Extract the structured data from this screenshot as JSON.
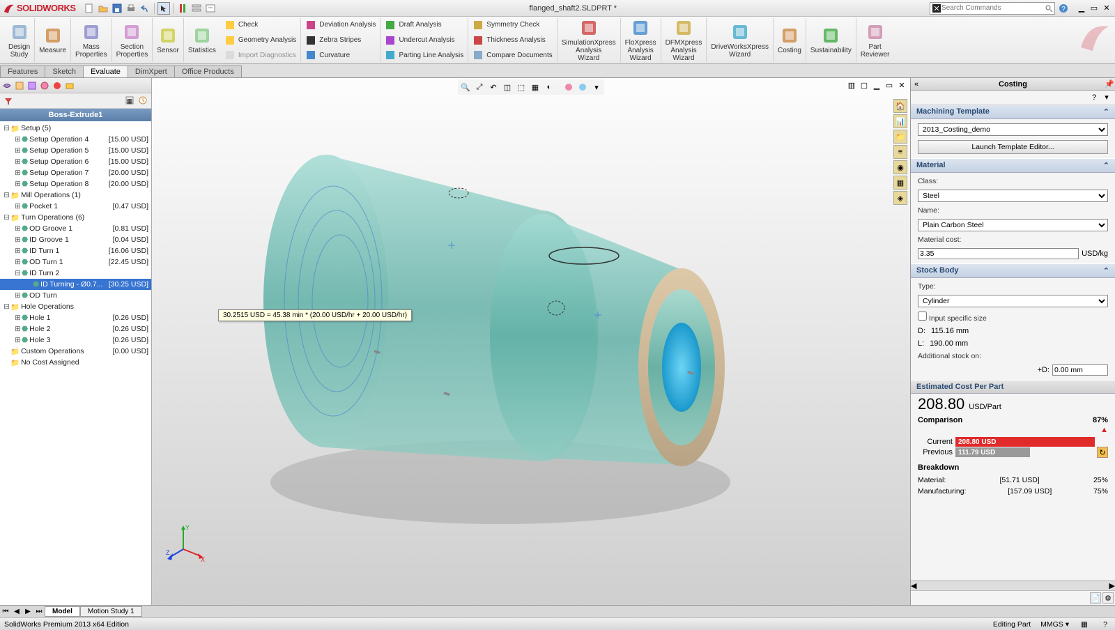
{
  "app_name": "SOLIDWORKS",
  "doc_title": "flanged_shaft2.SLDPRT *",
  "search_placeholder": "Search Commands",
  "ribbon": {
    "big": [
      {
        "label": "Design\nStudy",
        "icon": "design-study"
      },
      {
        "label": "Measure",
        "icon": "measure"
      },
      {
        "label": "Mass\nProperties",
        "icon": "mass"
      },
      {
        "label": "Section\nProperties",
        "icon": "section"
      },
      {
        "label": "Sensor",
        "icon": "sensor"
      },
      {
        "label": "Statistics",
        "icon": "stats"
      }
    ],
    "col1": [
      {
        "label": "Check",
        "icon": "check"
      },
      {
        "label": "Geometry Analysis",
        "icon": "geom"
      },
      {
        "label": "Import Diagnostics",
        "icon": "import",
        "disabled": true
      }
    ],
    "col2": [
      {
        "label": "Deviation Analysis",
        "icon": "dev"
      },
      {
        "label": "Zebra Stripes",
        "icon": "zebra"
      },
      {
        "label": "Curvature",
        "icon": "curv"
      }
    ],
    "col3": [
      {
        "label": "Draft Analysis",
        "icon": "draft"
      },
      {
        "label": "Undercut Analysis",
        "icon": "undercut"
      },
      {
        "label": "Parting Line Analysis",
        "icon": "parting"
      }
    ],
    "col4": [
      {
        "label": "Symmetry Check",
        "icon": "sym"
      },
      {
        "label": "Thickness Analysis",
        "icon": "thick"
      },
      {
        "label": "Compare Documents",
        "icon": "compare"
      }
    ],
    "big2": [
      {
        "label": "SimulationXpress\nAnalysis\nWizard",
        "icon": "simx"
      },
      {
        "label": "FloXpress\nAnalysis\nWizard",
        "icon": "flox"
      },
      {
        "label": "DFMXpress\nAnalysis\nWizard",
        "icon": "dfmx"
      },
      {
        "label": "DriveWorksXpress\nWizard",
        "icon": "dwx"
      },
      {
        "label": "Costing",
        "icon": "costing"
      },
      {
        "label": "Sustainability",
        "icon": "sustain"
      },
      {
        "label": "Part\nReviewer",
        "icon": "partrev"
      }
    ]
  },
  "tabs": [
    "Features",
    "Sketch",
    "Evaluate",
    "DimXpert",
    "Office Products"
  ],
  "active_tab": "Evaluate",
  "feature_header": "Boss-Extrude1",
  "tree": [
    {
      "lvl": 0,
      "exp": "-",
      "label": "Setup (5)",
      "folder": true
    },
    {
      "lvl": 1,
      "exp": "+",
      "label": "Setup Operation 4",
      "cost": "[15.00 USD]"
    },
    {
      "lvl": 1,
      "exp": "+",
      "label": "Setup Operation 5",
      "cost": "[15.00 USD]"
    },
    {
      "lvl": 1,
      "exp": "+",
      "label": "Setup Operation 6",
      "cost": "[15.00 USD]"
    },
    {
      "lvl": 1,
      "exp": "+",
      "label": "Setup Operation 7",
      "cost": "[20.00 USD]"
    },
    {
      "lvl": 1,
      "exp": "+",
      "label": "Setup Operation 8",
      "cost": "[20.00 USD]"
    },
    {
      "lvl": 0,
      "exp": "-",
      "label": "Mill Operations (1)",
      "folder": true
    },
    {
      "lvl": 1,
      "exp": "+",
      "label": "Pocket 1",
      "cost": "[0.47 USD]"
    },
    {
      "lvl": 0,
      "exp": "-",
      "label": "Turn Operations (6)",
      "folder": true
    },
    {
      "lvl": 1,
      "exp": "+",
      "label": "OD Groove 1",
      "cost": "[0.81 USD]"
    },
    {
      "lvl": 1,
      "exp": "+",
      "label": "ID Groove 1",
      "cost": "[0.04 USD]"
    },
    {
      "lvl": 1,
      "exp": "+",
      "label": "ID Turn 1",
      "cost": "[16.06 USD]"
    },
    {
      "lvl": 1,
      "exp": "+",
      "label": "OD Turn 1",
      "cost": "[22.45 USD]"
    },
    {
      "lvl": 1,
      "exp": "-",
      "label": "ID Turn 2",
      "cost": ""
    },
    {
      "lvl": 2,
      "exp": "",
      "label": "ID Turning - Ø0.7...",
      "cost": "[30.25 USD]",
      "selected": true
    },
    {
      "lvl": 1,
      "exp": "+",
      "label": "OD Turn",
      "cost": ""
    },
    {
      "lvl": 0,
      "exp": "-",
      "label": "Hole Operations",
      "folder": true
    },
    {
      "lvl": 1,
      "exp": "+",
      "label": "Hole 1",
      "cost": "[0.26 USD]"
    },
    {
      "lvl": 1,
      "exp": "+",
      "label": "Hole 2",
      "cost": "[0.26 USD]"
    },
    {
      "lvl": 1,
      "exp": "+",
      "label": "Hole 3",
      "cost": "[0.26 USD]"
    },
    {
      "lvl": 0,
      "exp": "",
      "label": "Custom Operations",
      "folder": true,
      "cost": "[0.00 USD]"
    },
    {
      "lvl": 0,
      "exp": "",
      "label": "No Cost Assigned",
      "folder": true
    }
  ],
  "tooltip_text": "30.2515 USD = 45.38 min * (20.00 USD/hr + 20.00 USD/hr)",
  "costing": {
    "title": "Costing",
    "template_hdr": "Machining Template",
    "template_val": "2013_Costing_demo",
    "launch_btn": "Launch Template Editor...",
    "material_hdr": "Material",
    "class_lbl": "Class:",
    "class_val": "Steel",
    "name_lbl": "Name:",
    "name_val": "Plain Carbon Steel",
    "matcost_lbl": "Material cost:",
    "matcost_val": "3.35",
    "matcost_unit": "USD/kg",
    "stock_hdr": "Stock Body",
    "type_lbl": "Type:",
    "type_val": "Cylinder",
    "specific_lbl": "Input specific size",
    "d_lbl": "D:",
    "d_val": "115.16 mm",
    "l_lbl": "L:",
    "l_val": "190.00 mm",
    "addstock_lbl": "Additional stock on:",
    "plusd_lbl": "+D:",
    "plusd_val": "0.00 mm",
    "est_hdr": "Estimated Cost Per Part",
    "est_val": "208.80",
    "est_unit": "USD/Part",
    "comp_hdr": "Comparison",
    "comp_pct": "87%",
    "cur_lbl": "Current",
    "cur_val": "208.80 USD",
    "prev_lbl": "Previous",
    "prev_val": "111.79 USD",
    "brk_hdr": "Breakdown",
    "brk_mat_lbl": "Material:",
    "brk_mat_val": "[51.71 USD]",
    "brk_mat_pct": "25%",
    "brk_mfg_lbl": "Manufacturing:",
    "brk_mfg_val": "[157.09 USD]",
    "brk_mfg_pct": "75%"
  },
  "bottom_tabs": [
    "Model",
    "Motion Study 1"
  ],
  "status_left": "SolidWorks Premium 2013 x64 Edition",
  "status_right": [
    "Editing Part",
    "MMGS"
  ],
  "colors": {
    "part_main": "#6fbfb5",
    "part_dark": "#4a9890",
    "part_light": "#a5dcd4",
    "bore": "#1faae5",
    "flange": "#c9b896",
    "shadow": "rgba(0,0,0,0.15)"
  }
}
